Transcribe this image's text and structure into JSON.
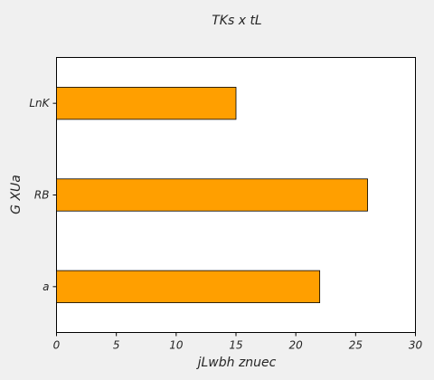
{
  "chart_data": {
    "type": "bar",
    "orientation": "horizontal",
    "title": "TKs x tL",
    "xlabel": "jLwbh znuec",
    "ylabel": "G XUa",
    "categories": [
      "LnK",
      "RB",
      "a"
    ],
    "values": [
      15,
      26,
      22
    ],
    "xlim": [
      0,
      30
    ],
    "xticks": [
      "0",
      "5",
      "10",
      "15",
      "20",
      "25",
      "30"
    ],
    "bar_color": "#ff9f00",
    "grid": false,
    "legend": "none"
  }
}
